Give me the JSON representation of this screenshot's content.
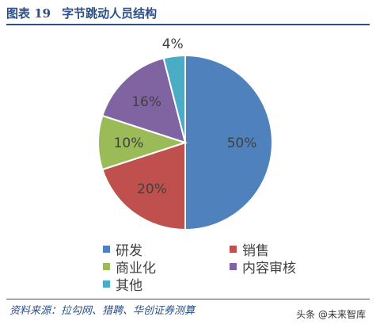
{
  "header": {
    "figure_no": "图表 19",
    "title": "字节跳动人员结构"
  },
  "chart_data": {
    "type": "pie",
    "title": "字节跳动人员结构",
    "slices": [
      {
        "label": "研发",
        "value": 50,
        "text": "50%",
        "color": "#4f81bd"
      },
      {
        "label": "销售",
        "value": 20,
        "text": "20%",
        "color": "#c0504d"
      },
      {
        "label": "商业化",
        "value": 10,
        "text": "10%",
        "color": "#9bbb59"
      },
      {
        "label": "内容审核",
        "value": 16,
        "text": "16%",
        "color": "#8064a2"
      },
      {
        "label": "其他",
        "value": 4,
        "text": "4%",
        "color": "#4bacc6"
      }
    ],
    "legend_placement": "bottom"
  },
  "footer": {
    "source": "资料来源：拉勾网、猎聘、华创证券测算",
    "watermark": "头条 @未来智库"
  }
}
